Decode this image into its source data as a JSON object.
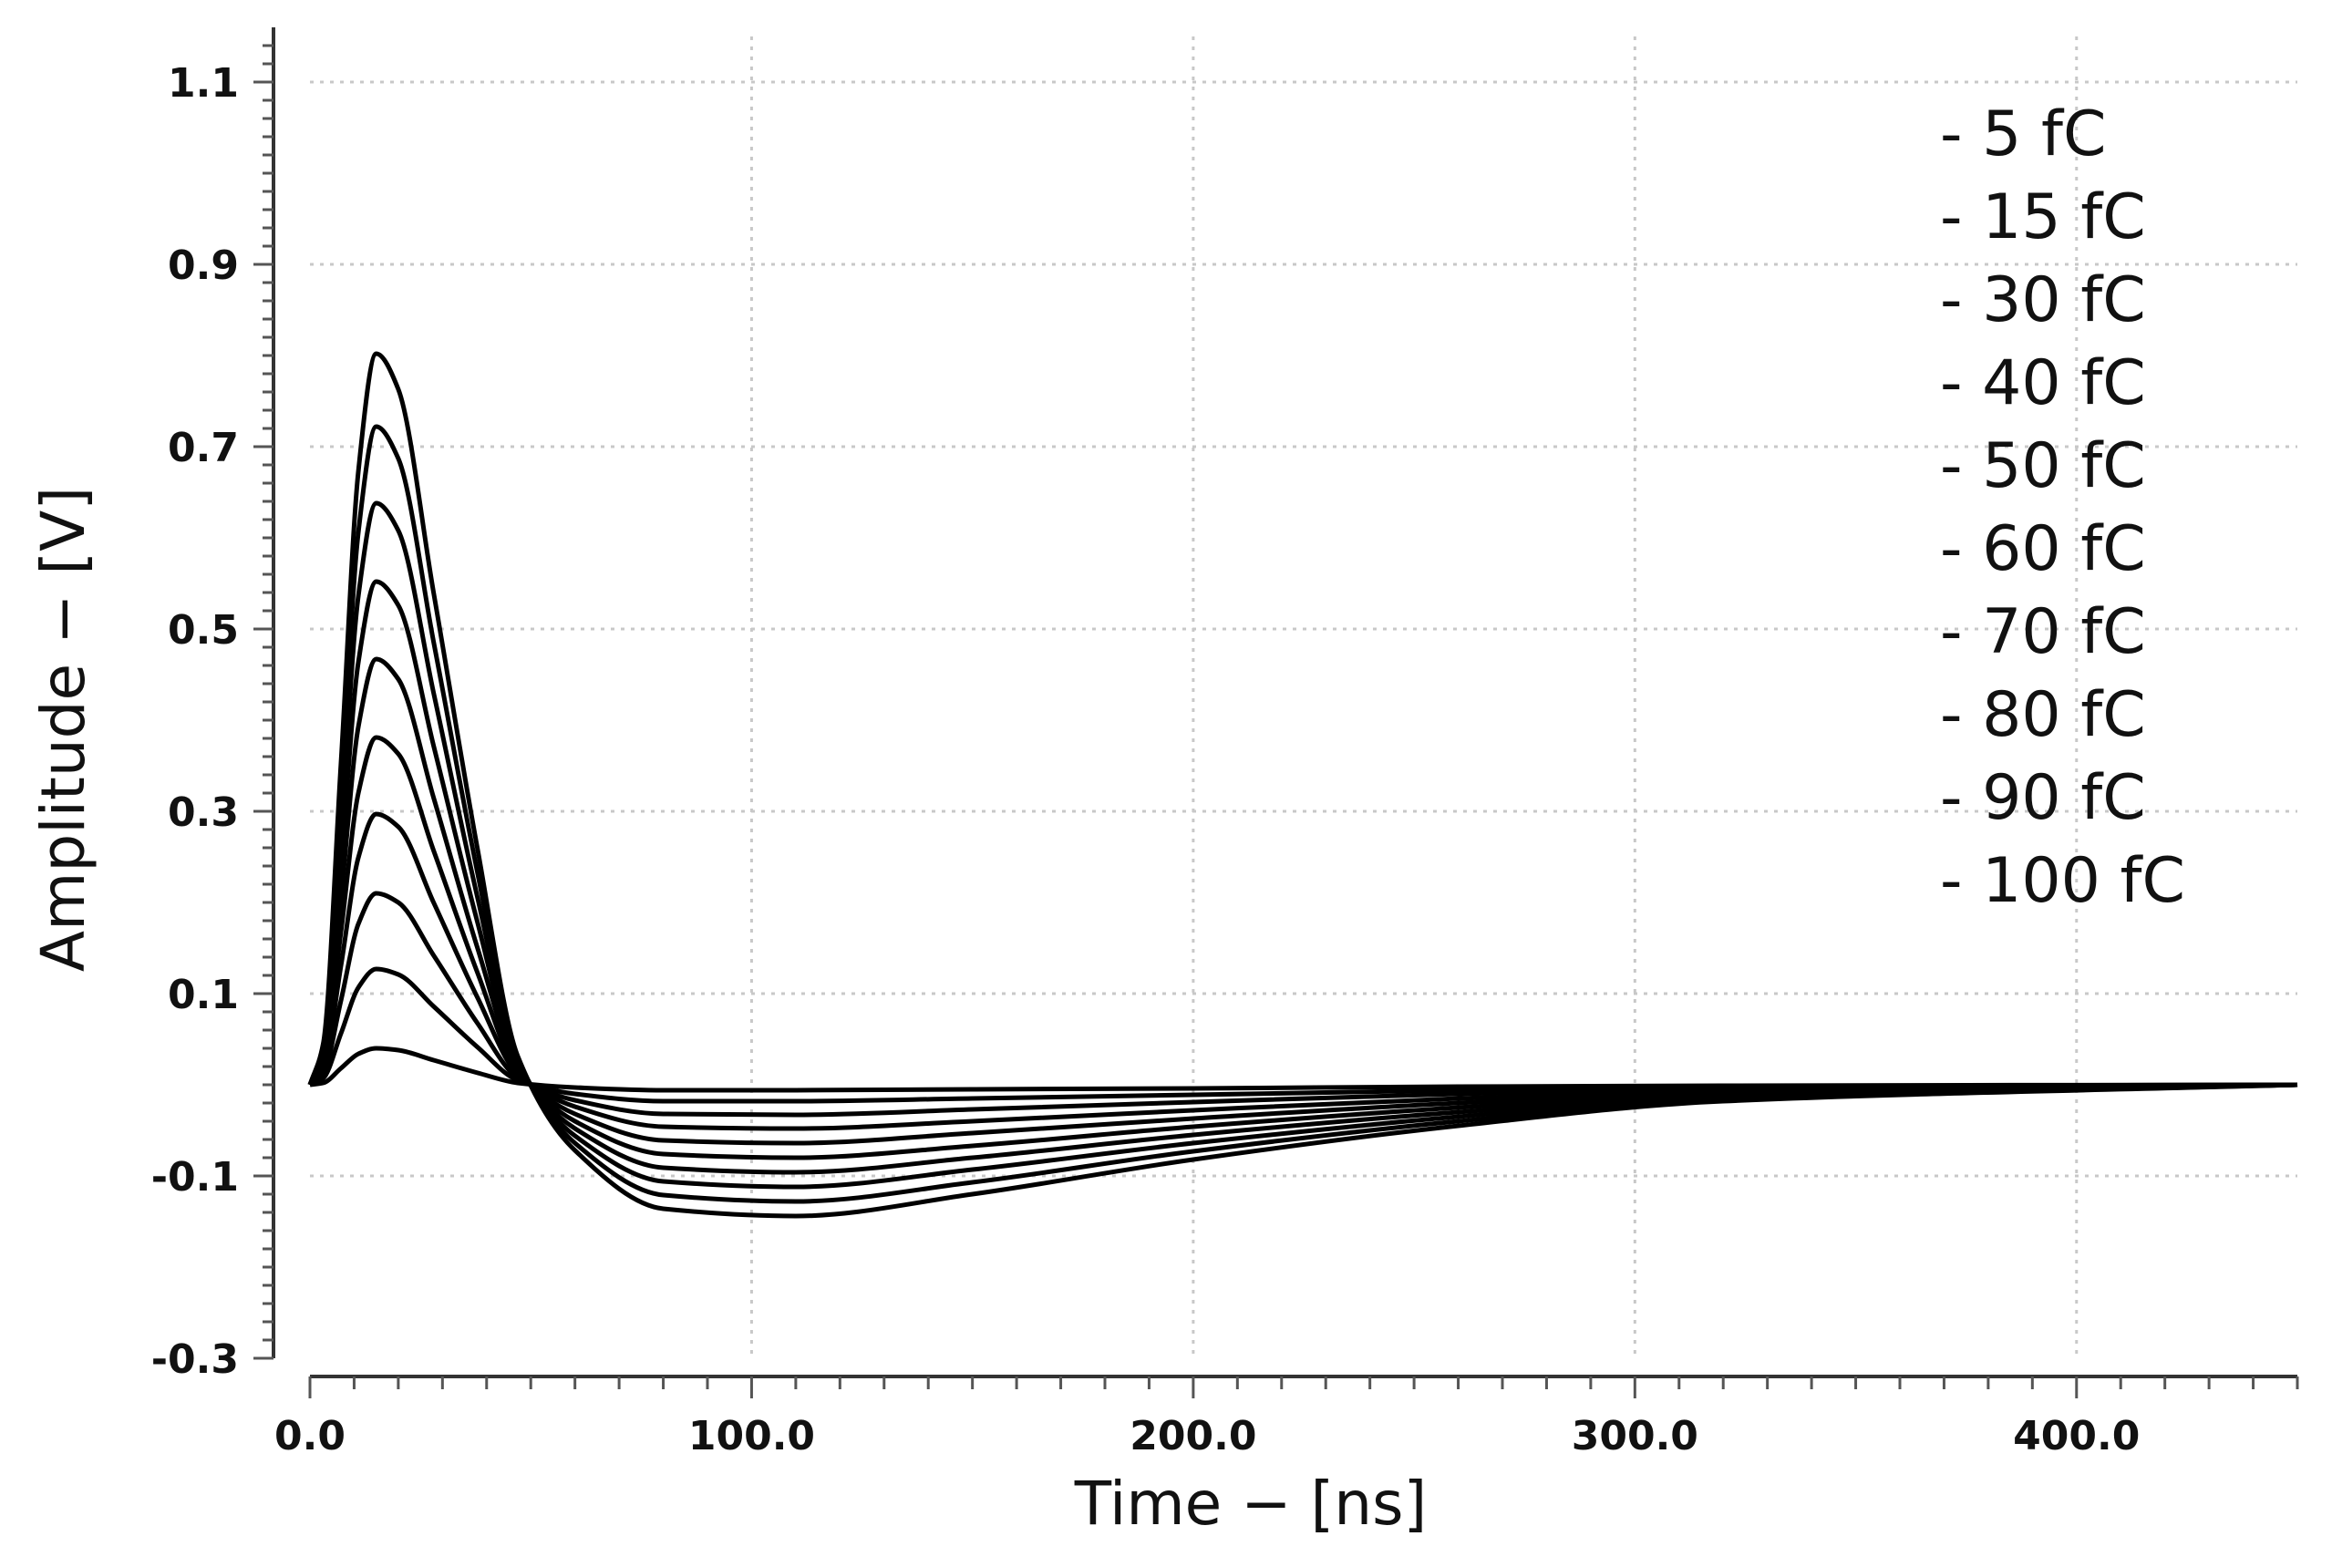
{
  "chart_data": {
    "type": "line",
    "title": "",
    "xlabel": "Time − [ns]",
    "ylabel": "Amplitude − [V]",
    "xlim": [
      0,
      450
    ],
    "ylim": [
      -0.3,
      1.15
    ],
    "x_ticks": [
      0,
      100,
      200,
      300,
      400
    ],
    "x_tick_labels": [
      "0.0",
      "100.0",
      "200.0",
      "300.0",
      "400.0"
    ],
    "y_ticks": [
      -0.3,
      -0.1,
      0.1,
      0.3,
      0.5,
      0.7,
      0.9,
      1.1
    ],
    "y_tick_labels": [
      "-0.3",
      "-0.1",
      "0.1",
      "0.3",
      "0.5",
      "0.7",
      "0.9",
      "1.1"
    ],
    "grid": true,
    "legend_position": "top-right",
    "series_color": "#000000",
    "series": [
      {
        "name": "- 5 fC",
        "x": [
          0,
          3,
          7,
          11,
          15,
          20,
          28,
          38,
          47,
          60,
          80,
          110,
          150,
          200,
          260,
          320,
          450
        ],
        "y": [
          0.0,
          0.002,
          0.018,
          0.034,
          0.04,
          0.038,
          0.027,
          0.013,
          0.002,
          -0.003,
          -0.006,
          -0.006,
          -0.005,
          -0.004,
          -0.002,
          -0.001,
          0.0
        ]
      },
      {
        "name": "- 15 fC",
        "x": [
          0,
          3,
          7,
          11,
          15,
          20,
          28,
          38,
          47,
          60,
          80,
          110,
          150,
          200,
          260,
          320,
          450
        ],
        "y": [
          0.0,
          0.007,
          0.056,
          0.107,
          0.127,
          0.121,
          0.086,
          0.041,
          0.005,
          -0.01,
          -0.018,
          -0.018,
          -0.015,
          -0.011,
          -0.006,
          -0.002,
          0.0
        ]
      },
      {
        "name": "- 30 fC",
        "x": [
          0,
          3,
          7,
          11,
          15,
          20,
          28,
          38,
          47,
          60,
          80,
          110,
          150,
          200,
          260,
          320,
          450
        ],
        "y": [
          0.0,
          0.012,
          0.092,
          0.177,
          0.21,
          0.2,
          0.142,
          0.067,
          0.008,
          -0.017,
          -0.032,
          -0.033,
          -0.027,
          -0.019,
          -0.01,
          -0.004,
          0.0
        ]
      },
      {
        "name": "- 40 fC",
        "x": [
          0,
          3,
          7,
          11,
          15,
          20,
          28,
          38,
          47,
          60,
          80,
          110,
          150,
          200,
          260,
          320,
          450
        ],
        "y": [
          0.0,
          0.017,
          0.13,
          0.25,
          0.297,
          0.283,
          0.2,
          0.095,
          0.012,
          -0.024,
          -0.046,
          -0.048,
          -0.04,
          -0.028,
          -0.015,
          -0.006,
          0.0
        ]
      },
      {
        "name": "- 50 fC",
        "x": [
          0,
          3,
          7,
          11,
          15,
          20,
          28,
          38,
          47,
          60,
          80,
          110,
          150,
          200,
          260,
          320,
          450
        ],
        "y": [
          0.0,
          0.022,
          0.167,
          0.321,
          0.381,
          0.363,
          0.257,
          0.122,
          0.015,
          -0.032,
          -0.061,
          -0.064,
          -0.053,
          -0.037,
          -0.02,
          -0.008,
          0.0
        ]
      },
      {
        "name": "- 60 fC",
        "x": [
          0,
          3,
          7,
          11,
          15,
          20,
          28,
          38,
          47,
          60,
          80,
          110,
          150,
          200,
          260,
          320,
          450
        ],
        "y": [
          0.0,
          0.027,
          0.204,
          0.394,
          0.467,
          0.445,
          0.315,
          0.149,
          0.019,
          -0.04,
          -0.076,
          -0.08,
          -0.067,
          -0.046,
          -0.025,
          -0.01,
          0.0
        ]
      },
      {
        "name": "- 70 fC",
        "x": [
          0,
          3,
          7,
          11,
          15,
          20,
          28,
          38,
          47,
          60,
          80,
          110,
          150,
          200,
          260,
          320,
          450
        ],
        "y": [
          0.0,
          0.032,
          0.242,
          0.465,
          0.552,
          0.526,
          0.372,
          0.177,
          0.022,
          -0.048,
          -0.091,
          -0.096,
          -0.08,
          -0.055,
          -0.03,
          -0.012,
          0.0
        ]
      },
      {
        "name": "- 80 fC",
        "x": [
          0,
          3,
          7,
          11,
          15,
          20,
          28,
          38,
          47,
          60,
          80,
          110,
          150,
          200,
          260,
          320,
          450
        ],
        "y": [
          0.0,
          0.036,
          0.28,
          0.538,
          0.638,
          0.608,
          0.43,
          0.204,
          0.026,
          -0.056,
          -0.106,
          -0.112,
          -0.093,
          -0.064,
          -0.035,
          -0.014,
          0.0
        ]
      },
      {
        "name": "- 90 fC",
        "x": [
          0,
          3,
          7,
          11,
          15,
          20,
          28,
          38,
          47,
          60,
          80,
          110,
          150,
          200,
          260,
          320,
          450
        ],
        "y": [
          0.0,
          0.041,
          0.316,
          0.608,
          0.722,
          0.687,
          0.486,
          0.231,
          0.029,
          -0.064,
          -0.121,
          -0.128,
          -0.107,
          -0.073,
          -0.04,
          -0.016,
          0.0
        ]
      },
      {
        "name": "- 100 fC",
        "x": [
          0,
          3,
          7,
          11,
          15,
          20,
          28,
          38,
          47,
          60,
          80,
          110,
          150,
          200,
          260,
          320,
          450
        ],
        "y": [
          0.0,
          0.045,
          0.351,
          0.675,
          0.802,
          0.763,
          0.54,
          0.257,
          0.032,
          -0.072,
          -0.136,
          -0.144,
          -0.12,
          -0.082,
          -0.045,
          -0.018,
          0.0
        ]
      }
    ]
  }
}
